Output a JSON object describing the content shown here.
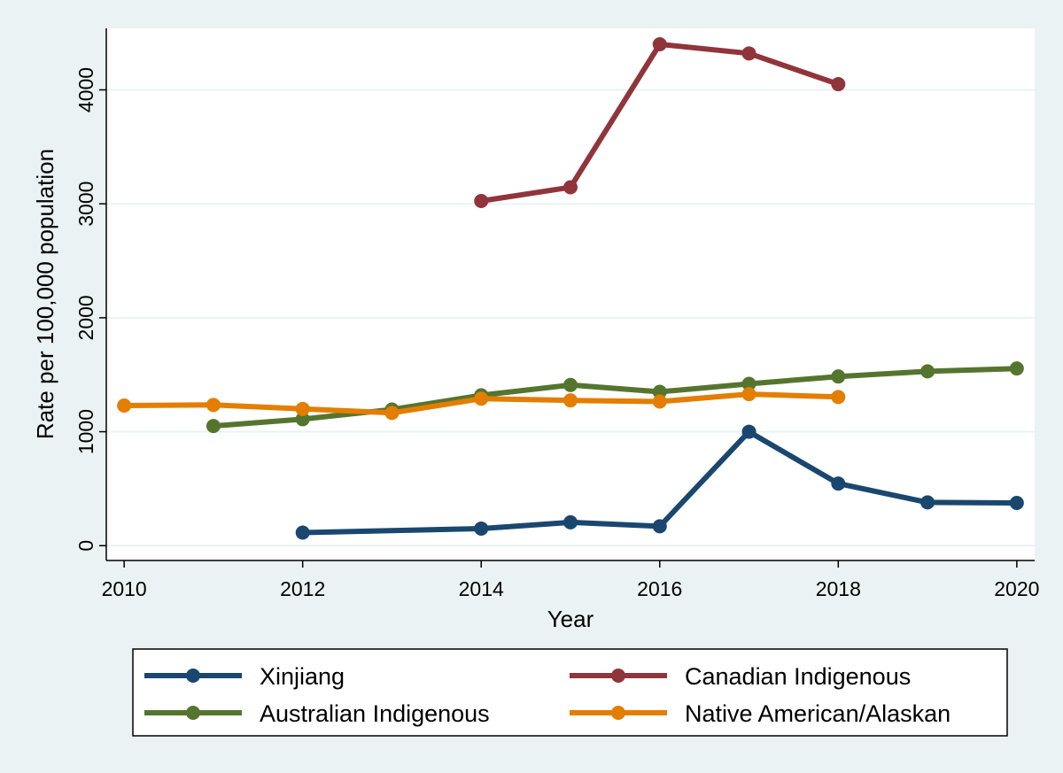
{
  "chart_data": {
    "type": "line",
    "xlabel": "Year",
    "ylabel": "Rate per 100,000 population",
    "xlim": [
      2009.8,
      2020.2
    ],
    "ylim": [
      -130,
      4540
    ],
    "x_ticks": [
      2010,
      2012,
      2014,
      2016,
      2018,
      2020
    ],
    "y_ticks": [
      0,
      1000,
      2000,
      3000,
      4000
    ],
    "grid": "horizontal",
    "legend_position": "bottom",
    "series": [
      {
        "name": "Xinjiang",
        "color": "#1a476f",
        "points": [
          [
            2012,
            115
          ],
          [
            2014,
            150
          ],
          [
            2015,
            205
          ],
          [
            2016,
            170
          ],
          [
            2017,
            1000
          ],
          [
            2018,
            545
          ],
          [
            2019,
            380
          ],
          [
            2020,
            375
          ]
        ]
      },
      {
        "name": "Canadian Indigenous",
        "color": "#90353b",
        "points": [
          [
            2014,
            3025
          ],
          [
            2015,
            3145
          ],
          [
            2016,
            4400
          ],
          [
            2017,
            4320
          ],
          [
            2018,
            4050
          ]
        ]
      },
      {
        "name": "Australian Indigenous",
        "color": "#55752f",
        "points": [
          [
            2011,
            1050
          ],
          [
            2012,
            1110
          ],
          [
            2013,
            1195
          ],
          [
            2014,
            1320
          ],
          [
            2015,
            1410
          ],
          [
            2016,
            1350
          ],
          [
            2017,
            1420
          ],
          [
            2018,
            1485
          ],
          [
            2019,
            1530
          ],
          [
            2020,
            1555
          ]
        ]
      },
      {
        "name": "Native American/Alaskan",
        "color": "#e37e00",
        "points": [
          [
            2010,
            1230
          ],
          [
            2011,
            1235
          ],
          [
            2012,
            1200
          ],
          [
            2013,
            1165
          ],
          [
            2014,
            1290
          ],
          [
            2015,
            1275
          ],
          [
            2016,
            1265
          ],
          [
            2017,
            1330
          ],
          [
            2018,
            1305
          ]
        ]
      }
    ]
  }
}
